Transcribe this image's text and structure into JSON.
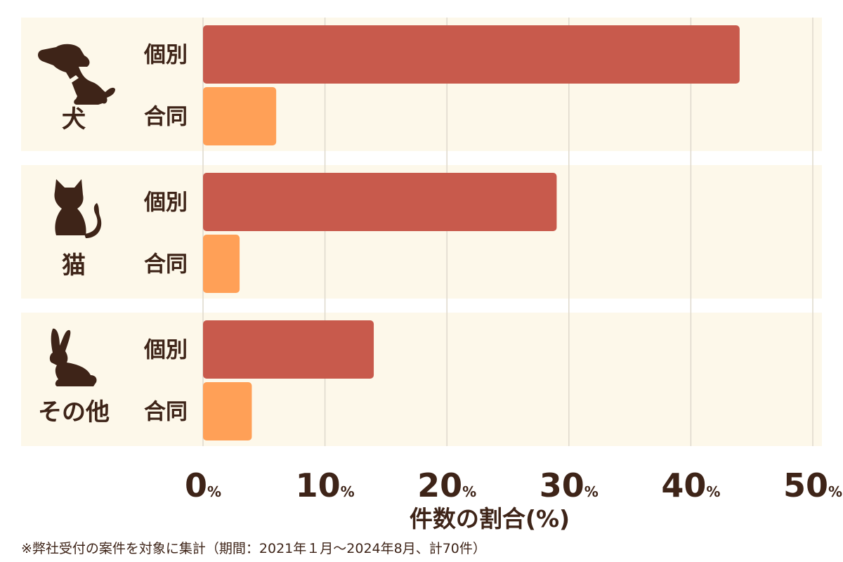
{
  "chart_data": {
    "type": "bar",
    "orientation": "horizontal",
    "groups": [
      {
        "label": "犬",
        "icon": "dog-icon",
        "bars": [
          {
            "label": "個別",
            "value": 44
          },
          {
            "label": "合同",
            "value": 6
          }
        ]
      },
      {
        "label": "猫",
        "icon": "cat-icon",
        "bars": [
          {
            "label": "個別",
            "value": 29
          },
          {
            "label": "合同",
            "value": 3
          }
        ]
      },
      {
        "label": "その他",
        "icon": "rabbit-icon",
        "bars": [
          {
            "label": "個別",
            "value": 14
          },
          {
            "label": "合同",
            "value": 4
          }
        ]
      }
    ],
    "x_ticks": [
      {
        "value": 0,
        "num": "0",
        "unit": "%"
      },
      {
        "value": 10,
        "num": "10",
        "unit": "%"
      },
      {
        "value": 20,
        "num": "20",
        "unit": "%"
      },
      {
        "value": 30,
        "num": "30",
        "unit": "%"
      },
      {
        "value": 40,
        "num": "40",
        "unit": "%"
      },
      {
        "value": 50,
        "num": "50",
        "unit": "%"
      }
    ],
    "xlim": [
      0,
      50
    ],
    "xlabel": "件数の割合(%)",
    "grid": true,
    "colors": {
      "個別": "#c85a4c",
      "合同": "#ffa057",
      "panel": "#fdf8ea",
      "text": "#3e2418",
      "grid": "#ded8cc"
    }
  },
  "footnote": "※弊社受付の案件を対象に集計（期間：2021年１月～2024年8月、計70件）"
}
